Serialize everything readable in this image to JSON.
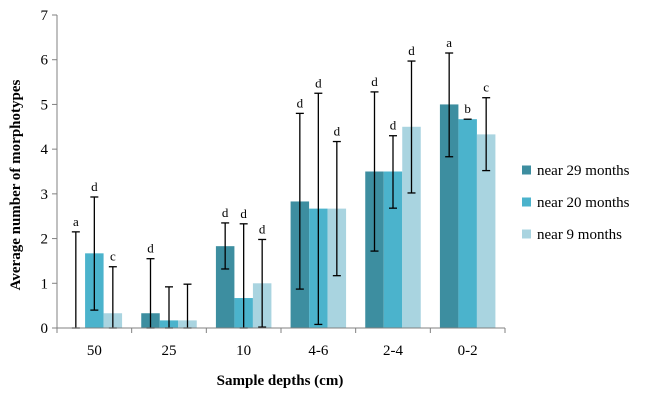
{
  "chart_data": {
    "type": "bar",
    "xlabel": "Sample depths (cm)",
    "ylabel": "Average number of morphotypes",
    "ylim": [
      0,
      7
    ],
    "yticks": [
      0,
      1,
      2,
      3,
      4,
      5,
      6,
      7
    ],
    "categories": [
      "50",
      "25",
      "10",
      "4-6",
      "2-4",
      "0-2"
    ],
    "legend_position": "right",
    "grid": false,
    "series": [
      {
        "name": "near 29 months",
        "color": "#3d8ea0",
        "values": [
          0,
          0.33,
          1.83,
          2.83,
          3.5,
          5.0
        ],
        "error_hi": [
          2.15,
          1.55,
          2.35,
          4.8,
          5.28,
          6.15
        ],
        "error_lo": [
          0,
          0,
          1.32,
          0.87,
          1.72,
          3.83
        ],
        "labels": [
          "a",
          "d",
          "d",
          "d",
          "d",
          "a"
        ]
      },
      {
        "name": "near 20 months",
        "color": "#4bb3cc",
        "values": [
          1.67,
          0.17,
          0.67,
          2.67,
          3.5,
          4.67
        ],
        "error_hi": [
          2.93,
          0.92,
          2.33,
          5.25,
          4.3,
          4.67
        ],
        "error_lo": [
          0.4,
          0,
          0,
          0.08,
          2.68,
          4.67
        ],
        "labels": [
          "d",
          "",
          "d",
          "d",
          "d",
          "b"
        ]
      },
      {
        "name": "near 9 months",
        "color": "#a9d4e0",
        "values": [
          0.33,
          0.17,
          1.0,
          2.67,
          4.5,
          4.33
        ],
        "error_hi": [
          1.37,
          0.98,
          1.98,
          4.17,
          5.97,
          5.15
        ],
        "error_lo": [
          0,
          0,
          0.02,
          1.17,
          3.02,
          3.52
        ],
        "labels": [
          "c",
          "",
          "d",
          "d",
          "d",
          "c"
        ]
      }
    ]
  }
}
